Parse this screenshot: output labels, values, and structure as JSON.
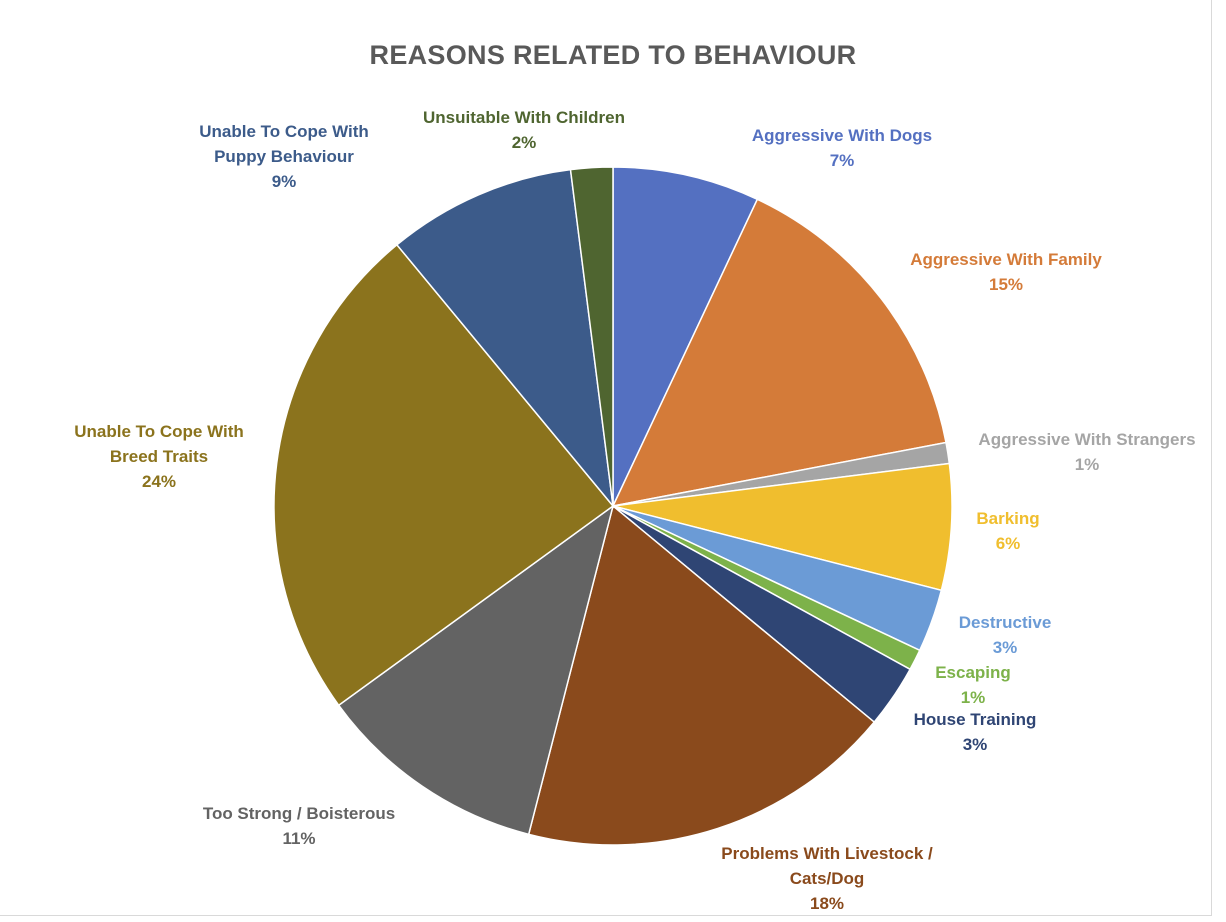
{
  "chart_data": {
    "type": "pie",
    "title": "REASONS RELATED TO BEHAVIOUR",
    "slices": [
      {
        "label": [
          "Aggressive With Dogs"
        ],
        "pct": "7%",
        "value": 7,
        "color": "#5470c1"
      },
      {
        "label": [
          "Aggressive With Family"
        ],
        "pct": "15%",
        "value": 15,
        "color": "#d47b39"
      },
      {
        "label": [
          "Aggressive With Strangers"
        ],
        "pct": "1%",
        "value": 1,
        "color": "#a5a5a5"
      },
      {
        "label": [
          "Barking"
        ],
        "pct": "6%",
        "value": 6,
        "color": "#f0be2e"
      },
      {
        "label": [
          "Destructive"
        ],
        "pct": "3%",
        "value": 3,
        "color": "#6b9bd6"
      },
      {
        "label": [
          "Escaping"
        ],
        "pct": "1%",
        "value": 1,
        "color": "#7db24a"
      },
      {
        "label": [
          "House Training"
        ],
        "pct": "3%",
        "value": 3,
        "color": "#2f4574"
      },
      {
        "label": [
          "Problems With Livestock /",
          "Cats/Dog"
        ],
        "pct": "18%",
        "value": 18,
        "color": "#8a4a1c"
      },
      {
        "label": [
          "Too Strong / Boisterous"
        ],
        "pct": "11%",
        "value": 11,
        "color": "#636363"
      },
      {
        "label": [
          "Unable To Cope With",
          "Breed Traits"
        ],
        "pct": "24%",
        "value": 24,
        "color": "#8b731d"
      },
      {
        "label": [
          "Unable To Cope With",
          "Puppy Behaviour"
        ],
        "pct": "9%",
        "value": 9,
        "color": "#3c5b8a"
      },
      {
        "label": [
          "Unsuitable With Children"
        ],
        "pct": "2%",
        "value": 2,
        "color": "#4f6530"
      }
    ]
  }
}
